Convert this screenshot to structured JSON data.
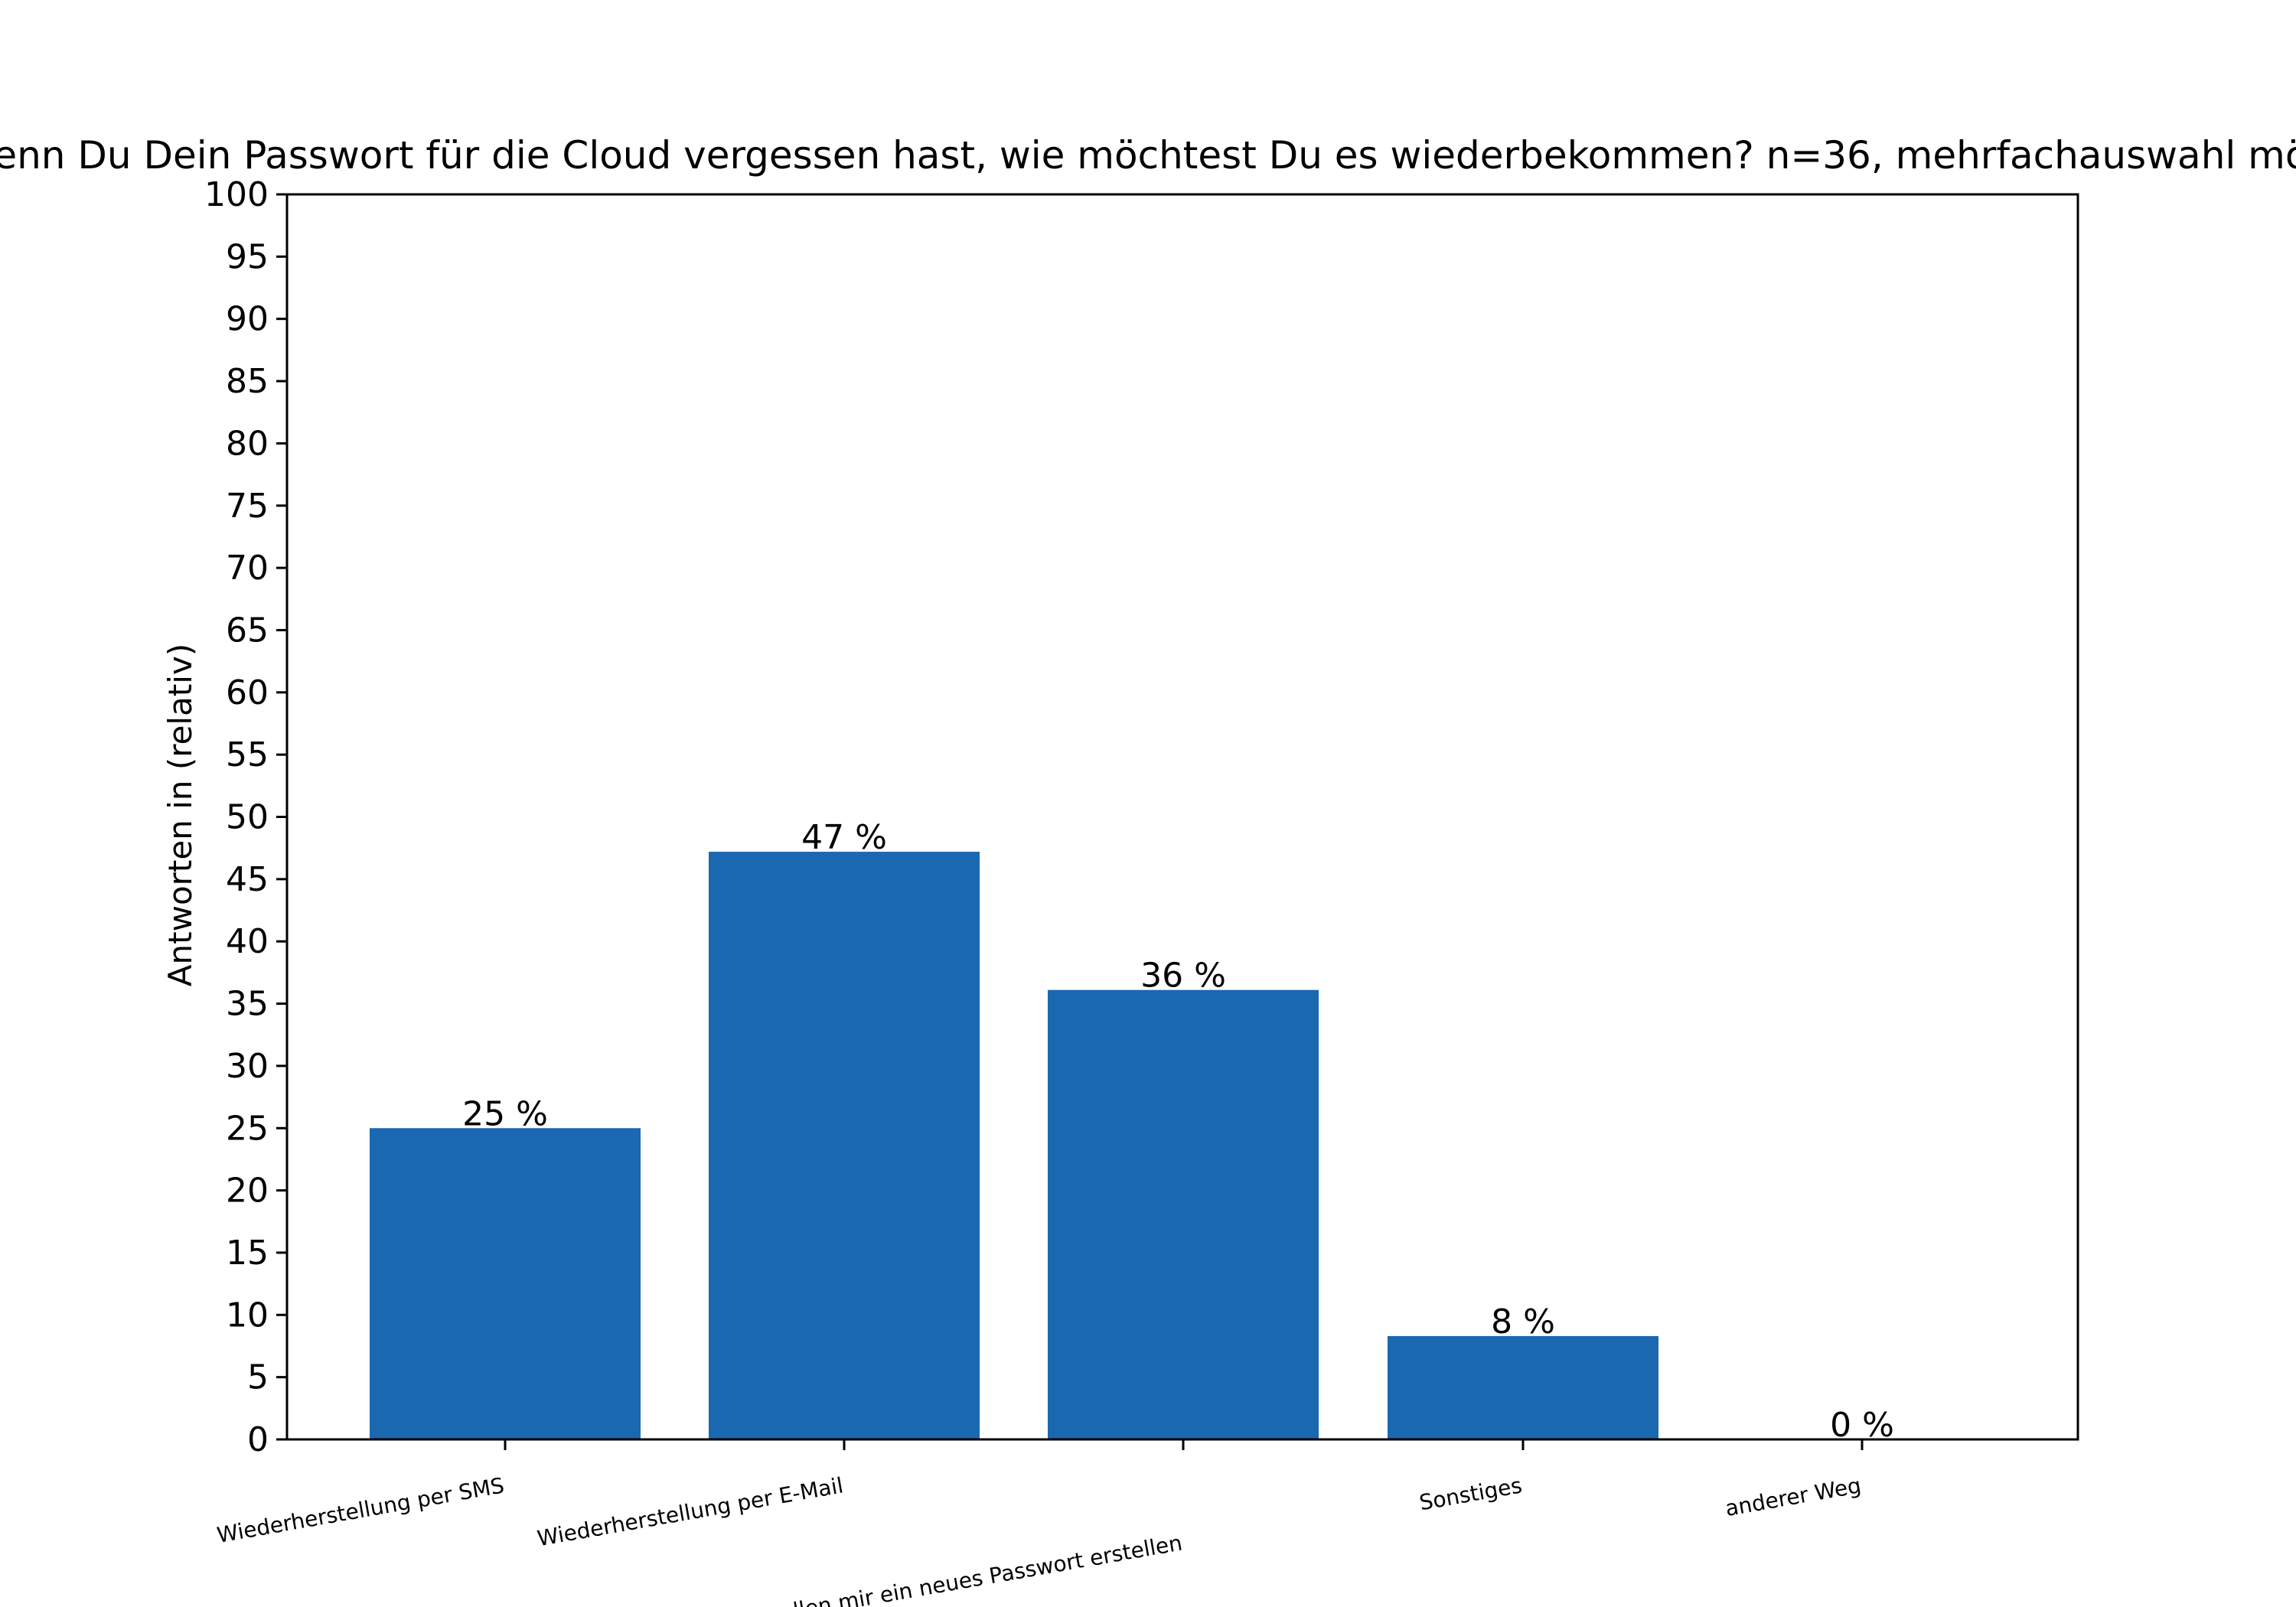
{
  "chart_data": {
    "type": "bar",
    "title": "Wenn Du Dein Passwort für die Cloud vergessen hast, wie möchtest Du es wiederbekommen? n=36, mehrfachauswahl möglich",
    "xlabel": "",
    "ylabel": "Antworten in (relativ)",
    "ylim": [
      0,
      100
    ],
    "yticks": [
      0,
      5,
      10,
      15,
      20,
      25,
      30,
      35,
      40,
      45,
      50,
      55,
      60,
      65,
      70,
      75,
      80,
      85,
      90,
      95,
      100
    ],
    "grid": false,
    "legend": "none",
    "bar_color": "#1a68b0",
    "categories": [
      "Wiederherstellung per SMS",
      "Wiederherstellung per E-Mail",
      "Sozialarbeiter*innen sollen mir ein neues Passwort erstellen",
      "Sonstiges",
      "anderer Weg"
    ],
    "values": [
      25,
      47.2,
      36.1,
      8.3,
      0
    ],
    "data_labels": [
      "25 %",
      "47 %",
      "36 %",
      "8 %",
      "0 %"
    ]
  }
}
